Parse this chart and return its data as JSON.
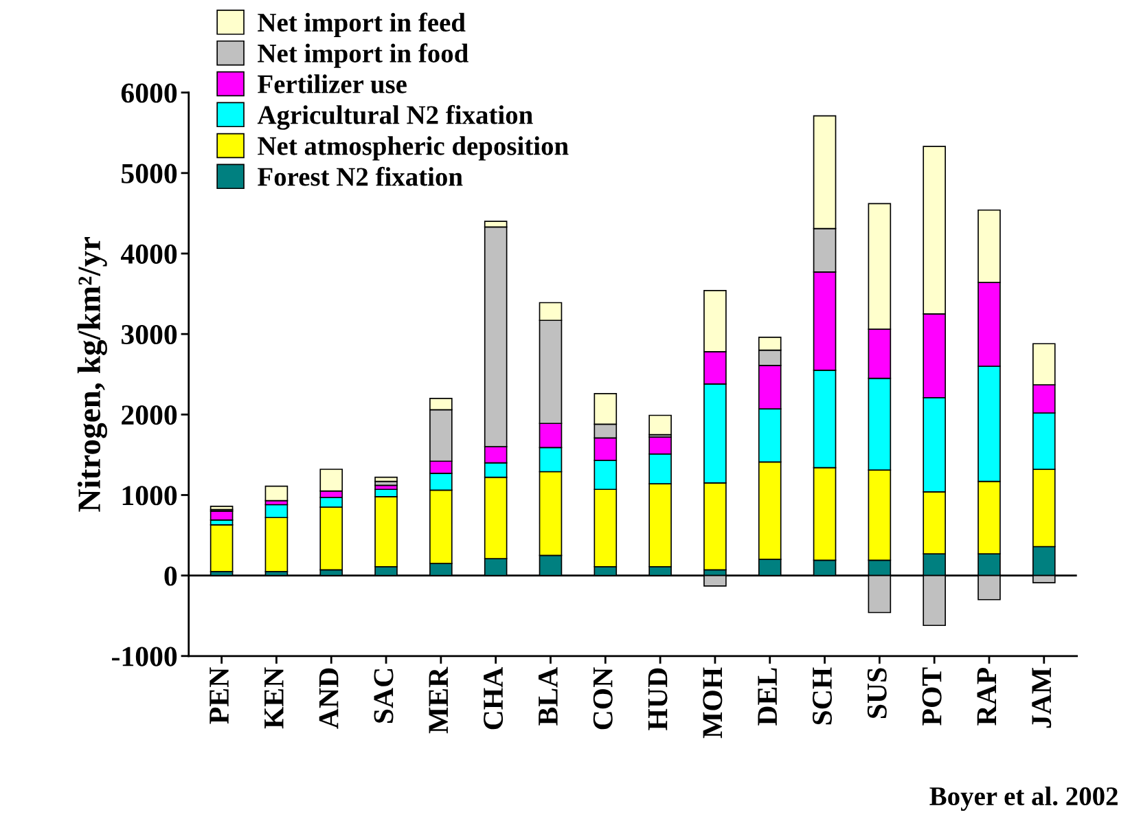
{
  "chart_data": {
    "type": "bar",
    "stacked": true,
    "ylabel": "Nitrogen, kg/km²/yr",
    "categories": [
      "PEN",
      "KEN",
      "AND",
      "SAC",
      "MER",
      "CHA",
      "BLA",
      "CON",
      "HUD",
      "MOH",
      "DEL",
      "SCH",
      "SUS",
      "POT",
      "RAP",
      "JAM"
    ],
    "series": [
      {
        "name": "Forest N2 fixation",
        "color": "#008080",
        "values": [
          50,
          50,
          70,
          110,
          150,
          210,
          250,
          110,
          110,
          70,
          200,
          190,
          190,
          270,
          270,
          360
        ]
      },
      {
        "name": "Net atmospheric deposition",
        "color": "#ffff00",
        "values": [
          580,
          670,
          780,
          870,
          910,
          1010,
          1040,
          960,
          1030,
          1080,
          1210,
          1150,
          1120,
          770,
          900,
          960
        ]
      },
      {
        "name": "Agricultural N2 fixation",
        "color": "#00ffff",
        "values": [
          60,
          160,
          120,
          90,
          210,
          180,
          300,
          360,
          370,
          1230,
          660,
          1210,
          1140,
          1170,
          1430,
          700
        ]
      },
      {
        "name": "Fertilizer use",
        "color": "#ff00ff",
        "values": [
          110,
          50,
          80,
          50,
          150,
          200,
          300,
          280,
          210,
          400,
          540,
          1220,
          610,
          1040,
          1040,
          350
        ]
      },
      {
        "name": "Net import in food",
        "color": "#c0c0c0",
        "values": [
          20,
          null,
          null,
          50,
          640,
          2730,
          1280,
          170,
          30,
          -130,
          190,
          540,
          -460,
          -620,
          -300,
          -90
        ]
      },
      {
        "name": "Net import in feed",
        "color": "#ffffcc",
        "values": [
          40,
          180,
          270,
          50,
          140,
          70,
          220,
          380,
          240,
          760,
          160,
          1400,
          1560,
          2080,
          900,
          510
        ]
      }
    ],
    "ylim": [
      -1000,
      6000
    ],
    "yticks": [
      -1000,
      0,
      1000,
      2000,
      3000,
      4000,
      5000,
      6000
    ],
    "legend": "top left",
    "grid": false,
    "ref_lines": [
      {
        "axis": "y",
        "value": 0
      }
    ],
    "annotations": [
      "Boyer et al. 2002"
    ]
  }
}
